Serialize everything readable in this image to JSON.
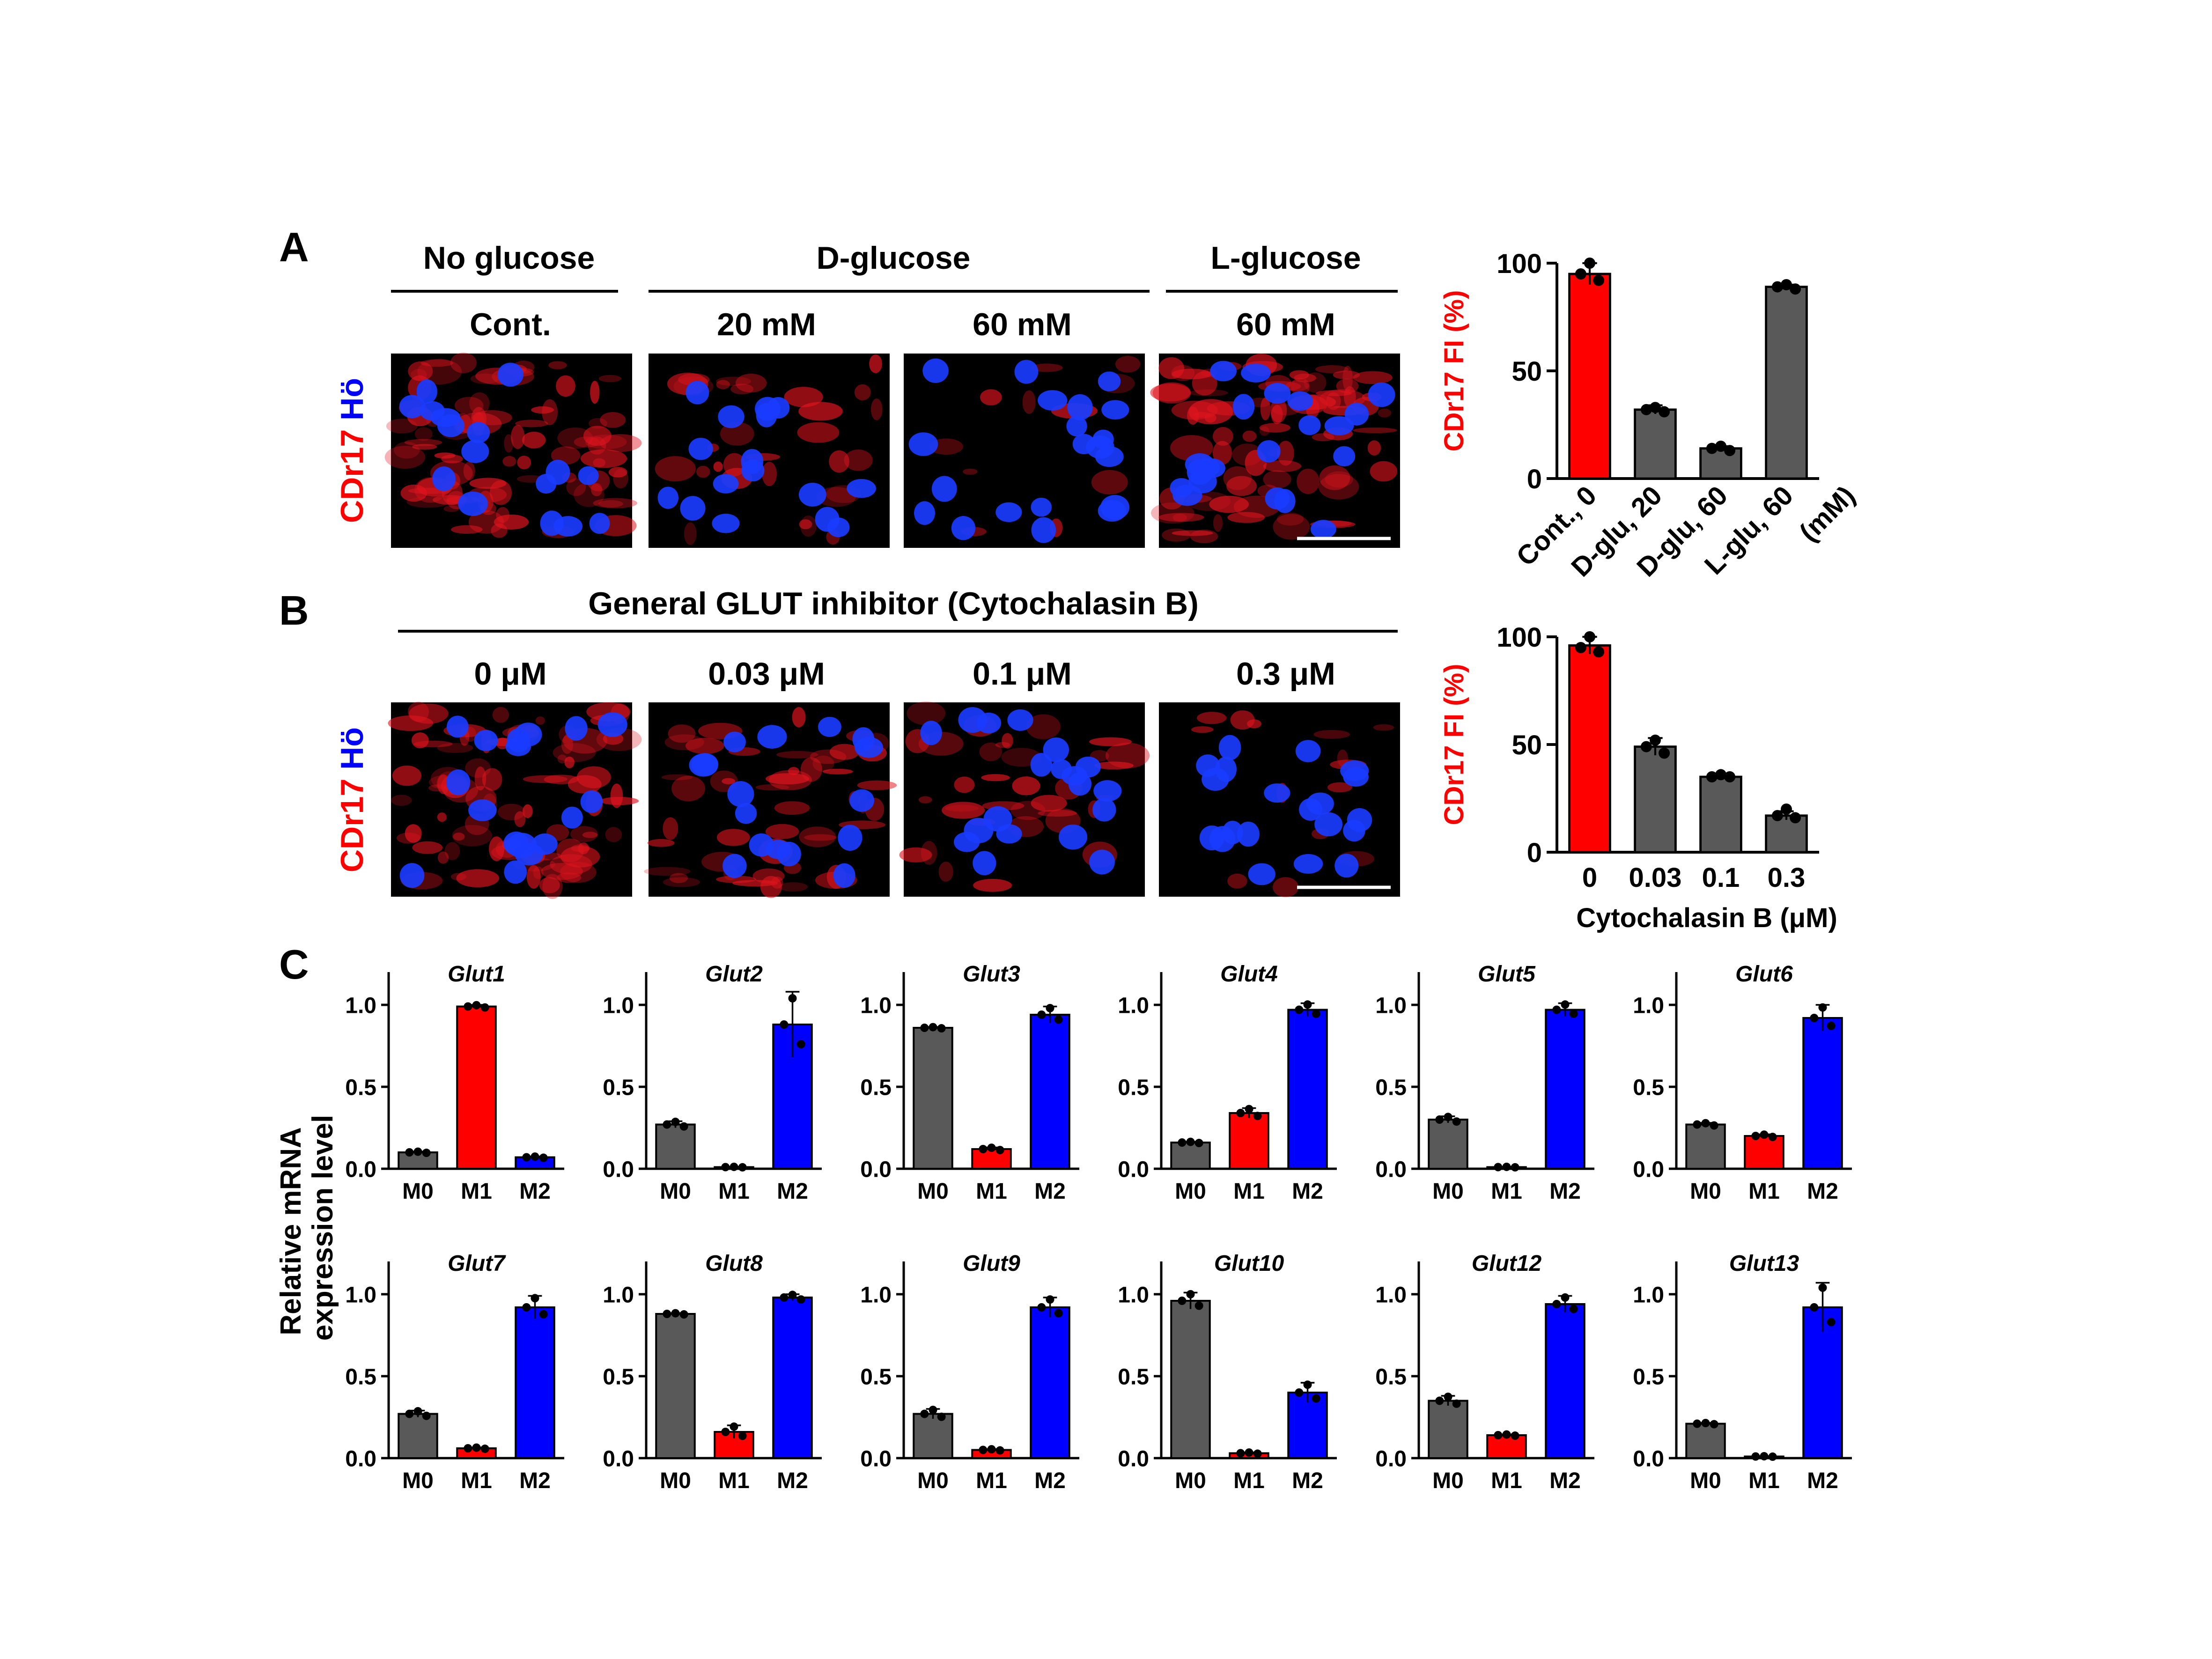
{
  "panel_letters": {
    "a": "A",
    "b": "B",
    "c": "C"
  },
  "panel_a": {
    "groups": [
      "No glucose",
      "D-glucose",
      "L-glucose"
    ],
    "conditions": [
      "Cont.",
      "20 mM",
      "60 mM",
      "60 mM"
    ],
    "side_label_red": "CDr17",
    "side_label_blue": "Hö"
  },
  "panel_b": {
    "group": "General GLUT inhibitor (Cytochalasin B)",
    "conditions": [
      "0 μM",
      "0.03 μM",
      "0.1 μM",
      "0.3 μM"
    ],
    "side_label_red": "CDr17",
    "side_label_blue": "Hö"
  },
  "panel_c": {
    "ylabel_line1": "Relative mRNA",
    "ylabel_line2": "expression level"
  },
  "colors": {
    "red": "#ff0000",
    "blue": "#0000ff",
    "gray": "#595959",
    "nucleus": "#1a3cff"
  },
  "chart_data": [
    {
      "type": "bar",
      "panel": "A",
      "categories": [
        "Cont., 0",
        "D-glu, 20",
        "D-glu, 60",
        "L-glu, 60"
      ],
      "unit_label": "(mM)",
      "values": [
        95,
        32,
        14,
        89
      ],
      "errors": [
        5,
        2,
        1,
        1
      ],
      "points": [
        [
          100,
          95,
          92
        ],
        [
          33,
          32,
          31
        ],
        [
          15,
          14,
          13
        ],
        [
          90,
          89,
          88
        ]
      ],
      "bar_colors": [
        "#ff0000",
        "#595959",
        "#595959",
        "#595959"
      ],
      "ylabel": "CDr17 FI (%)",
      "ylim": [
        0,
        100
      ],
      "yticks": [
        "0",
        "50",
        "100"
      ]
    },
    {
      "type": "bar",
      "panel": "B",
      "categories": [
        "0",
        "0.03",
        "0.1",
        "0.3"
      ],
      "values": [
        96,
        49,
        35,
        17
      ],
      "errors": [
        4,
        4,
        1,
        2
      ],
      "points": [
        [
          100,
          95,
          93
        ],
        [
          52,
          49,
          46
        ],
        [
          36,
          35,
          35
        ],
        [
          20,
          17,
          16
        ]
      ],
      "bar_colors": [
        "#ff0000",
        "#595959",
        "#595959",
        "#595959"
      ],
      "ylabel": "CDr17 FI (%)",
      "xlabel": "Cytochalasin B  (μM)",
      "ylim": [
        0,
        100
      ],
      "yticks": [
        "0",
        "50",
        "100"
      ]
    },
    {
      "type": "bar",
      "panel": "C",
      "title": "Glut1",
      "categories": [
        "M0",
        "M1",
        "M2"
      ],
      "values": [
        0.1,
        0.99,
        0.07
      ],
      "errors": [
        0.005,
        0.01,
        0.005
      ],
      "ylim": [
        0,
        1.2
      ],
      "yticks": [
        "0.0",
        "0.5",
        "1.0"
      ]
    },
    {
      "type": "bar",
      "panel": "C",
      "title": "Glut2",
      "categories": [
        "M0",
        "M1",
        "M2"
      ],
      "values": [
        0.27,
        0.01,
        0.88
      ],
      "errors": [
        0.02,
        0.002,
        0.2
      ],
      "ylim": [
        0,
        1.2
      ],
      "yticks": [
        "0.0",
        "0.5",
        "1.0"
      ]
    },
    {
      "type": "bar",
      "panel": "C",
      "title": "Glut3",
      "categories": [
        "M0",
        "M1",
        "M2"
      ],
      "values": [
        0.86,
        0.12,
        0.94
      ],
      "errors": [
        0.005,
        0.01,
        0.05
      ],
      "ylim": [
        0,
        1.2
      ],
      "yticks": [
        "0.0",
        "0.5",
        "1.0"
      ]
    },
    {
      "type": "bar",
      "panel": "C",
      "title": "Glut4",
      "categories": [
        "M0",
        "M1",
        "M2"
      ],
      "values": [
        0.16,
        0.34,
        0.97
      ],
      "errors": [
        0.005,
        0.03,
        0.04
      ],
      "ylim": [
        0,
        1.2
      ],
      "yticks": [
        "0.0",
        "0.5",
        "1.0"
      ]
    },
    {
      "type": "bar",
      "panel": "C",
      "title": "Glut5",
      "categories": [
        "M0",
        "M1",
        "M2"
      ],
      "values": [
        0.3,
        0.01,
        0.97
      ],
      "errors": [
        0.02,
        0.002,
        0.04
      ],
      "ylim": [
        0,
        1.2
      ],
      "yticks": [
        "0.0",
        "0.5",
        "1.0"
      ]
    },
    {
      "type": "bar",
      "panel": "C",
      "title": "Glut6",
      "categories": [
        "M0",
        "M1",
        "M2"
      ],
      "values": [
        0.27,
        0.2,
        0.92
      ],
      "errors": [
        0.01,
        0.01,
        0.08
      ],
      "ylim": [
        0,
        1.2
      ],
      "yticks": [
        "0.0",
        "0.5",
        "1.0"
      ]
    },
    {
      "type": "bar",
      "panel": "C",
      "title": "Glut7",
      "categories": [
        "M0",
        "M1",
        "M2"
      ],
      "values": [
        0.27,
        0.06,
        0.92
      ],
      "errors": [
        0.02,
        0.005,
        0.07
      ],
      "ylim": [
        0,
        1.2
      ],
      "yticks": [
        "0.0",
        "0.5",
        "1.0"
      ]
    },
    {
      "type": "bar",
      "panel": "C",
      "title": "Glut8",
      "categories": [
        "M0",
        "M1",
        "M2"
      ],
      "values": [
        0.88,
        0.16,
        0.98
      ],
      "errors": [
        0.005,
        0.04,
        0.02
      ],
      "ylim": [
        0,
        1.2
      ],
      "yticks": [
        "0.0",
        "0.5",
        "1.0"
      ]
    },
    {
      "type": "bar",
      "panel": "C",
      "title": "Glut9",
      "categories": [
        "M0",
        "M1",
        "M2"
      ],
      "values": [
        0.27,
        0.05,
        0.92
      ],
      "errors": [
        0.03,
        0.005,
        0.06
      ],
      "ylim": [
        0,
        1.2
      ],
      "yticks": [
        "0.0",
        "0.5",
        "1.0"
      ]
    },
    {
      "type": "bar",
      "panel": "C",
      "title": "Glut10",
      "categories": [
        "M0",
        "M1",
        "M2"
      ],
      "values": [
        0.96,
        0.03,
        0.4
      ],
      "errors": [
        0.05,
        0.005,
        0.06
      ],
      "ylim": [
        0,
        1.2
      ],
      "yticks": [
        "0.0",
        "0.5",
        "1.0"
      ]
    },
    {
      "type": "bar",
      "panel": "C",
      "title": "Glut12",
      "categories": [
        "M0",
        "M1",
        "M2"
      ],
      "values": [
        0.35,
        0.14,
        0.94
      ],
      "errors": [
        0.03,
        0.005,
        0.05
      ],
      "ylim": [
        0,
        1.2
      ],
      "yticks": [
        "0.0",
        "0.5",
        "1.0"
      ]
    },
    {
      "type": "bar",
      "panel": "C",
      "title": "Glut13",
      "categories": [
        "M0",
        "M1",
        "M2"
      ],
      "values": [
        0.21,
        0.01,
        0.92
      ],
      "errors": [
        0.005,
        0.002,
        0.15
      ],
      "ylim": [
        0,
        1.2
      ],
      "yticks": [
        "0.0",
        "0.5",
        "1.0"
      ]
    }
  ]
}
